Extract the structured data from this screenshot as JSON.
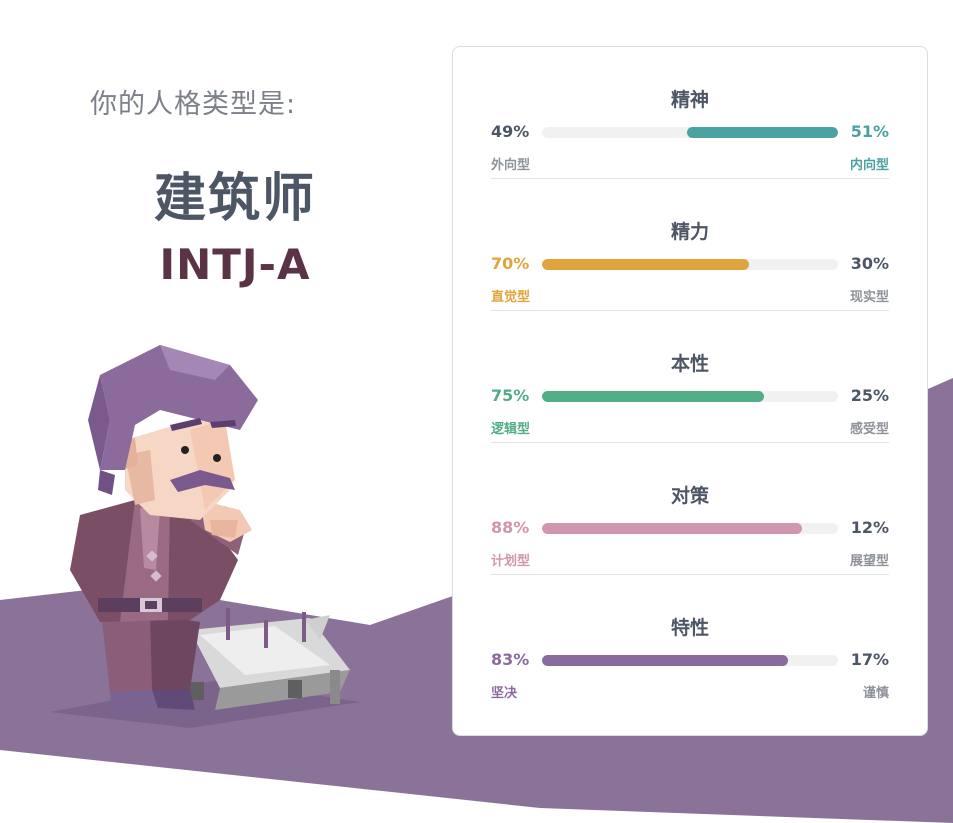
{
  "intro": {
    "label": "你的人格类型是:",
    "type_name": "建筑师",
    "type_code": "INTJ-A"
  },
  "colors": {
    "purple_background": "#8a7299",
    "mind": "#4aa3a2",
    "energy": "#e0a43d",
    "nature": "#52ad87",
    "tactics": "#d096ae",
    "identity": "#8a6b9e",
    "neutral_text": "#4d5665",
    "muted_text": "#8f939b"
  },
  "traits": [
    {
      "title": "精神",
      "left_pct": "49%",
      "right_pct": "51%",
      "left_label": "外向型",
      "right_label": "内向型",
      "dominant": "right",
      "fill": 0.51,
      "color": "#4aa3a2"
    },
    {
      "title": "精力",
      "left_pct": "70%",
      "right_pct": "30%",
      "left_label": "直觉型",
      "right_label": "现实型",
      "dominant": "left",
      "fill": 0.7,
      "color": "#e0a43d"
    },
    {
      "title": "本性",
      "left_pct": "75%",
      "right_pct": "25%",
      "left_label": "逻辑型",
      "right_label": "感受型",
      "dominant": "left",
      "fill": 0.75,
      "color": "#52ad87"
    },
    {
      "title": "对策",
      "left_pct": "88%",
      "right_pct": "12%",
      "left_label": "计划型",
      "right_label": "展望型",
      "dominant": "left",
      "fill": 0.88,
      "color": "#d096ae"
    },
    {
      "title": "特性",
      "left_pct": "83%",
      "right_pct": "17%",
      "left_label": "坚决",
      "right_label": "谨慎",
      "dominant": "left",
      "fill": 0.83,
      "color": "#8a6b9e"
    }
  ]
}
